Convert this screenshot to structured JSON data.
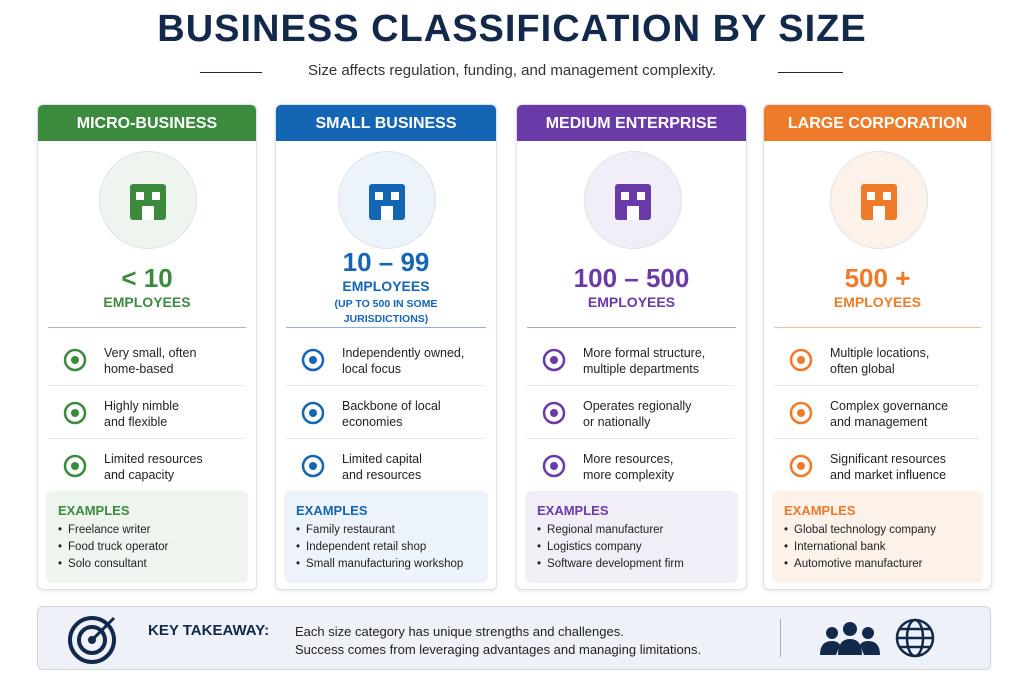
{
  "header": {
    "title": "BUSINESS CLASSIFICATION BY SIZE",
    "subtitle": "Size affects regulation, funding, and management complexity."
  },
  "cards": [
    {
      "title": "MICRO-BUSINESS",
      "count": "< 10",
      "unit": "EMPLOYEES",
      "features": [
        [
          "Very small, often",
          "home-based"
        ],
        [
          "Highly nimble",
          "and flexible"
        ],
        [
          "Limited resources",
          "and capacity"
        ]
      ],
      "examples_label": "EXAMPLES",
      "examples": [
        "Freelance writer",
        "Food truck operator",
        "Solo consultant"
      ]
    },
    {
      "title": "SMALL BUSINESS",
      "count": "10 – 99",
      "unit": "EMPLOYEES",
      "note": "(UP TO 500 IN SOME JURISDICTIONS)",
      "features": [
        [
          "Independently owned,",
          "local focus"
        ],
        [
          "Backbone of local",
          "economies"
        ],
        [
          "Limited capital",
          "and resources"
        ]
      ],
      "examples_label": "EXAMPLES",
      "examples": [
        "Family restaurant",
        "Independent retail shop",
        "Small manufacturing workshop"
      ]
    },
    {
      "title": "MEDIUM ENTERPRISE",
      "count": "100 – 500",
      "unit": "EMPLOYEES",
      "features": [
        [
          "More formal structure,",
          "multiple departments"
        ],
        [
          "Operates regionally",
          "or nationally"
        ],
        [
          "More resources,",
          "more complexity"
        ]
      ],
      "examples_label": "EXAMPLES",
      "examples": [
        "Regional manufacturer",
        "Logistics company",
        "Software development firm"
      ]
    },
    {
      "title": "LARGE CORPORATION",
      "count": "500 +",
      "unit": "EMPLOYEES",
      "features": [
        [
          "Multiple locations,",
          "often global"
        ],
        [
          "Complex governance",
          "and management"
        ],
        [
          "Significant resources",
          "and market influence"
        ]
      ],
      "examples_label": "EXAMPLES",
      "examples": [
        "Global technology company",
        "International bank",
        "Automotive manufacturer"
      ]
    }
  ],
  "takeaway": {
    "label": "KEY TAKEAWAY:",
    "lines": [
      "Each size category has unique strengths and challenges.",
      "Success comes from leveraging advantages and managing limitations."
    ]
  }
}
